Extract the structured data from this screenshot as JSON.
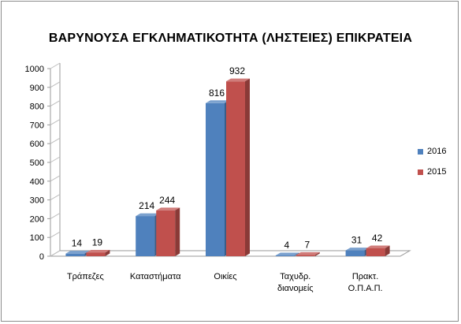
{
  "chart_data": {
    "type": "bar",
    "title": "ΒΑΡΥΝΟΥΣΑ ΕΓΚΛΗΜΑΤΙΚΟΤΗΤΑ (ΛΗΣΤΕΙΕΣ) ΕΠΙΚΡΑΤΕΙΑ",
    "categories": [
      [
        "Τράπεζες"
      ],
      [
        "Καταστήματα"
      ],
      [
        "Οικίες"
      ],
      [
        "Ταχυδρ.",
        "διανομείς"
      ],
      [
        "Πρακτ.",
        "Ο.Π.Α.Π."
      ]
    ],
    "series": [
      {
        "name": "2016",
        "values": [
          14,
          214,
          816,
          4,
          31
        ],
        "color": "#4f81bd"
      },
      {
        "name": "2015",
        "values": [
          19,
          244,
          932,
          7,
          42
        ],
        "color": "#c0504d"
      }
    ],
    "ylim": [
      0,
      1000
    ],
    "yticks": [
      0,
      100,
      200,
      300,
      400,
      500,
      600,
      700,
      800,
      900,
      1000
    ],
    "grid": false,
    "legend_position": "right",
    "style": "3d-clustered-column"
  }
}
